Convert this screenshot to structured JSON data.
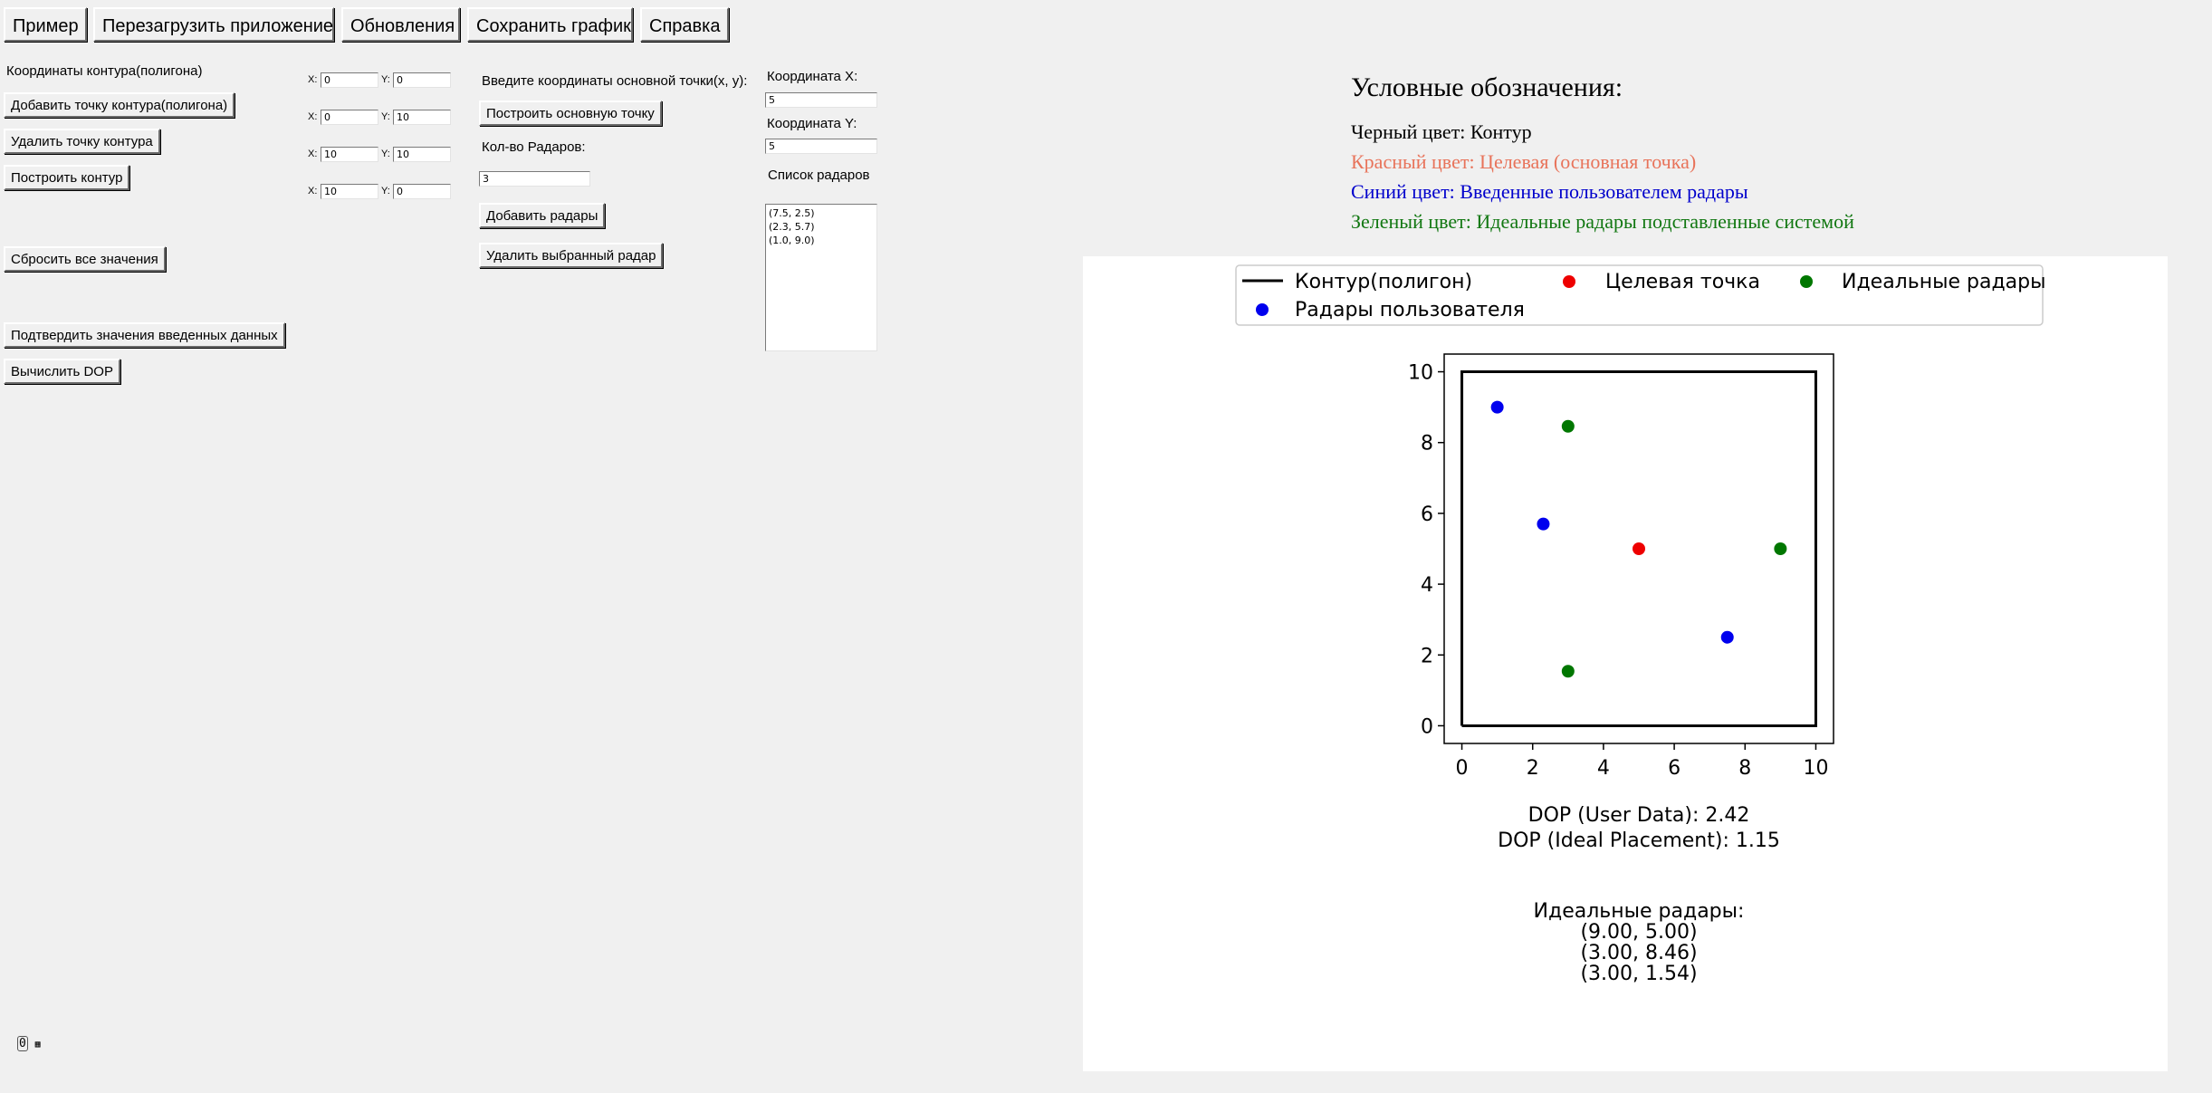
{
  "toolbar": {
    "example": "Пример",
    "restart": "Перезагрузить приложение",
    "updates": "Обновления",
    "save_plot": "Сохранить график",
    "help": "Справка"
  },
  "contour": {
    "title": "Координаты контура(полигона)",
    "add_point": "Добавить точку контура(полигона)",
    "remove_point": "Удалить точку контура",
    "build": "Построить контур",
    "reset": "Сбросить все значения",
    "confirm": "Подтвердить значения введенных данных",
    "compute_dop": "Вычислить DOP",
    "x_label": "X:",
    "y_label": "Y:",
    "points": [
      {
        "x": "0",
        "y": "0"
      },
      {
        "x": "0",
        "y": "10"
      },
      {
        "x": "10",
        "y": "10"
      },
      {
        "x": "10",
        "y": "0"
      }
    ]
  },
  "target": {
    "prompt": "Введите координаты основной точки(x, y):",
    "build": "Построить основную точку",
    "x_label": "Координата X:",
    "x_value": "5",
    "y_label": "Координата Y:",
    "y_value": "5"
  },
  "radars": {
    "count_label": "Кол-во Радаров:",
    "count_value": "3",
    "add": "Добавить радары",
    "remove": "Удалить выбранный радар",
    "list_label": "Список радаров",
    "list": [
      "(7.5, 2.5)",
      "(2.3, 5.7)",
      "(1.0, 9.0)"
    ]
  },
  "legend": {
    "title": "Условные обозначения:",
    "black": "Черный цвет: Контур",
    "red": "Красный цвет: Целевая (основная точка)",
    "blue": "Синий цвет: Введенные пользователем радары",
    "green": "Зеленый цвет: Идеальные радары подставленные системой",
    "colors": {
      "black": "#000000",
      "red": "#e8735a",
      "blue": "#0000cc",
      "green": "#117711"
    }
  },
  "chart_data": {
    "type": "scatter",
    "title": "",
    "xlabel": "",
    "ylabel": "",
    "xlim": [
      -0.5,
      10.5
    ],
    "ylim": [
      -0.5,
      10.5
    ],
    "xticks": [
      "0",
      "2",
      "4",
      "6",
      "8",
      "10"
    ],
    "yticks": [
      "0",
      "2",
      "4",
      "6",
      "8",
      "10"
    ],
    "legend_placement": "top",
    "legend": {
      "contour": "Контур(полигон)",
      "target": "Целевая точка",
      "ideal": "Идеальные радары",
      "user": "Радары пользователя"
    },
    "series": [
      {
        "name": "Контур(полигон)",
        "color": "#000000",
        "kind": "line",
        "points": [
          [
            0,
            0
          ],
          [
            0,
            10
          ],
          [
            10,
            10
          ],
          [
            10,
            0
          ],
          [
            0,
            0
          ]
        ]
      },
      {
        "name": "Целевая точка",
        "color": "#ee0000",
        "kind": "point",
        "points": [
          [
            5,
            5
          ]
        ]
      },
      {
        "name": "Идеальные радары",
        "color": "#007700",
        "kind": "point",
        "points": [
          [
            9.0,
            5.0
          ],
          [
            3.0,
            8.46
          ],
          [
            3.0,
            1.54
          ]
        ]
      },
      {
        "name": "Радары пользователя",
        "color": "#0000ee",
        "kind": "point",
        "points": [
          [
            7.5,
            2.5
          ],
          [
            2.3,
            5.7
          ],
          [
            1.0,
            9.0
          ]
        ]
      }
    ],
    "dop_user": "DOP (User Data): 2.42",
    "dop_ideal": "DOP (Ideal Placement): 1.15",
    "ideal_header": "Идеальные радары:",
    "ideal_list": [
      "(9.00, 5.00)",
      "(3.00, 8.46)",
      "(3.00, 1.54)"
    ]
  },
  "status": {
    "indicator": "0"
  }
}
